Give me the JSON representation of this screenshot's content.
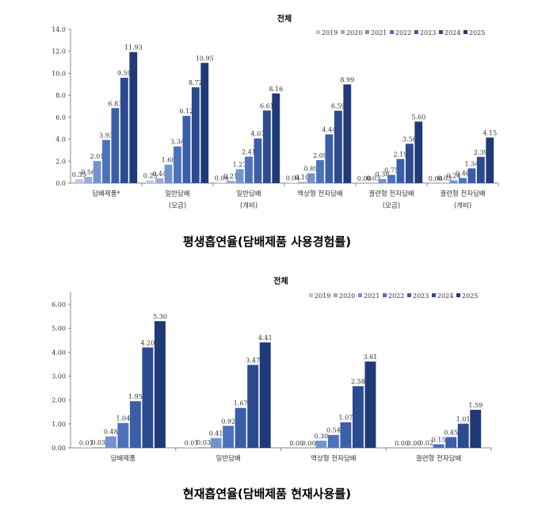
{
  "captions": {
    "top": "평생흡연율(담배제품 사용경험률)",
    "bottom": "현재흡연율(담배제품 현재사용률)"
  },
  "colors": [
    "#b7c8e6",
    "#93acd8",
    "#7393cc",
    "#4c72bd",
    "#3b5ea9",
    "#2c4a90",
    "#203a78"
  ],
  "chart_data": [
    {
      "type": "bar",
      "title": "전체",
      "ylabel": "",
      "ylim": [
        0,
        14
      ],
      "yticks": [
        "0.0",
        "2.0",
        "4.0",
        "6.0",
        "8.0",
        "10.0",
        "12.0",
        "14.0"
      ],
      "ytick_values": [
        0,
        2,
        4,
        6,
        8,
        10,
        12,
        14
      ],
      "grid": false,
      "legend": "top-right",
      "categories": [
        [
          "담배제품*"
        ],
        [
          "일반담배",
          "(모금)"
        ],
        [
          "일반담배",
          "(개비)"
        ],
        [
          "액상형 전자담배"
        ],
        [
          "궐련형 전자담배",
          "(모금)"
        ],
        [
          "궐련형 전자담배",
          "(개비)"
        ]
      ],
      "series": [
        {
          "name": "2019",
          "values": [
            0.35,
            0.25,
            0.04,
            0.04,
            0.0,
            0.0
          ],
          "labels": [
            "0.35",
            "0.25",
            "0.04",
            "0.04",
            "0.00",
            "0.00"
          ]
        },
        {
          "name": "2020",
          "values": [
            0.56,
            0.44,
            0.21,
            0.1,
            0.03,
            0.03
          ],
          "labels": [
            "0.56",
            "0.44",
            "0.21",
            "0.10",
            "0.03",
            "0.03"
          ]
        },
        {
          "name": "2021",
          "values": [
            2.01,
            1.68,
            1.27,
            0.89,
            0.38,
            0.24
          ],
          "labels": [
            "2.01",
            "1.68",
            "1.27",
            "0.89",
            "0.38",
            "0.24"
          ]
        },
        {
          "name": "2022",
          "values": [
            3.93,
            3.34,
            2.41,
            2.09,
            0.75,
            0.46
          ],
          "labels": [
            "3.93",
            "3.34",
            "2.41",
            "2.09",
            "0.75",
            "0.46"
          ]
        },
        {
          "name": "2023",
          "values": [
            6.83,
            6.12,
            4.07,
            4.44,
            2.19,
            1.34
          ],
          "labels": [
            "6.83",
            "6.12",
            "4.07",
            "4.44",
            "2.19",
            "1.34"
          ]
        },
        {
          "name": "2024",
          "values": [
            9.59,
            8.72,
            6.61,
            6.59,
            3.58,
            2.39
          ],
          "labels": [
            "9.59",
            "8.72",
            "6.61",
            "6.59",
            "3.58",
            "2.39"
          ]
        },
        {
          "name": "2025",
          "values": [
            11.93,
            10.95,
            8.16,
            8.99,
            5.6,
            4.15
          ],
          "labels": [
            "11.93",
            "10.95",
            "8.16",
            "8.99",
            "5.60",
            "4.15"
          ]
        }
      ]
    },
    {
      "type": "bar",
      "title": "전체",
      "ylabel": "",
      "ylim": [
        0,
        6.5
      ],
      "yticks": [
        "0.00",
        "1.00",
        "2.00",
        "3.00",
        "4.00",
        "5.00",
        "6.00"
      ],
      "ytick_values": [
        0,
        1,
        2,
        3,
        4,
        5,
        6
      ],
      "grid": false,
      "legend": "top-right",
      "categories": [
        [
          "담배제품"
        ],
        [
          "일반담배"
        ],
        [
          "액상형 전자담배"
        ],
        [
          "궐련형 전자담배"
        ]
      ],
      "series": [
        {
          "name": "2019",
          "values": [
            0.01,
            0.01,
            0.0,
            0.0
          ],
          "labels": [
            "0.01",
            "0.01",
            "0.00",
            "0.00"
          ]
        },
        {
          "name": "2020",
          "values": [
            0.03,
            0.03,
            0.0,
            0.0
          ],
          "labels": [
            "0.03",
            "0.03",
            "0.00",
            "0.00"
          ]
        },
        {
          "name": "2021",
          "values": [
            0.48,
            0.41,
            0.3,
            0.02
          ],
          "labels": [
            "0.48",
            "0.41",
            "0.30",
            "0.02"
          ]
        },
        {
          "name": "2022",
          "values": [
            1.04,
            0.92,
            0.54,
            0.15
          ],
          "labels": [
            "1.04",
            "0.92",
            "0.54",
            "0.15"
          ]
        },
        {
          "name": "2023",
          "values": [
            1.95,
            1.67,
            1.07,
            0.45
          ],
          "labels": [
            "1.95",
            "1.67",
            "1.07",
            "0.45"
          ]
        },
        {
          "name": "2024",
          "values": [
            4.2,
            3.47,
            2.58,
            1.01
          ],
          "labels": [
            "4.20",
            "3.47",
            "2.58",
            "1.01"
          ]
        },
        {
          "name": "2025",
          "values": [
            5.3,
            4.41,
            3.61,
            1.59
          ],
          "labels": [
            "5.30",
            "4.41",
            "3.61",
            "1.59"
          ]
        }
      ]
    }
  ]
}
